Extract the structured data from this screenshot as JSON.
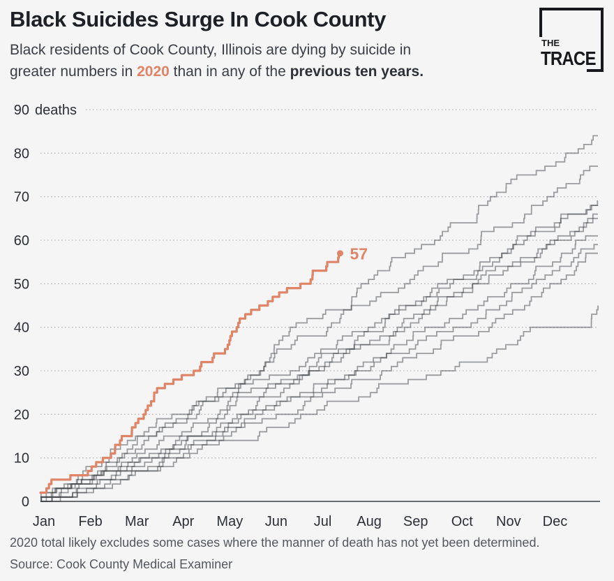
{
  "header": {
    "title": "Black Suicides Surge In Cook County",
    "subtitle_line1": "Black residents of Cook County, Illinois are dying by suicide in",
    "subtitle_line2_pre": "greater numbers in ",
    "subtitle_year": "2020",
    "subtitle_mid": " than in any of the ",
    "subtitle_bold": "previous ten years."
  },
  "logo": {
    "line1": "THE",
    "line2": "TRACE"
  },
  "footer": {
    "note": "2020 total likely excludes some cases where the manner of death has not yet been determined.",
    "source": "Source: Cook County Medical Examiner"
  },
  "colors": {
    "background": "#f5f5f6",
    "accent_orange": "#e08467",
    "prior_line": "#3f4347",
    "grid": "#b9babd",
    "axis_line": "#3c4043",
    "axis_text": "#2c3036"
  },
  "chart_data": {
    "type": "line",
    "title": "Black Suicides Surge In Cook County",
    "subtitle": "Cumulative suicide deaths of Black residents by month, 2020 vs previous ten years",
    "xlabel": "",
    "ylabel": "deaths",
    "x_categories": [
      "Jan",
      "Feb",
      "Mar",
      "Apr",
      "May",
      "Jun",
      "Jul",
      "Aug",
      "Sep",
      "Oct",
      "Nov",
      "Dec"
    ],
    "y_axis": {
      "range": [
        0,
        90
      ],
      "ticks": [
        0,
        10,
        20,
        30,
        40,
        50,
        60,
        70,
        80,
        90
      ],
      "top_tick_suffix": "deaths",
      "grid": "dotted"
    },
    "legend": "none",
    "highlight_series": {
      "name": "2020",
      "end_label": "57",
      "end_value": 57,
      "month_x": [
        0,
        1,
        2,
        3,
        4,
        5,
        6,
        6.45
      ],
      "cumulative": [
        2,
        6,
        17,
        28,
        35,
        47,
        53,
        57
      ]
    },
    "prior_series": [
      {
        "name": "prior-year-1",
        "end_value": 84,
        "cumulative": [
          0,
          5,
          11,
          18,
          26,
          34,
          42,
          50,
          57,
          64,
          71,
          77,
          84
        ]
      },
      {
        "name": "prior-year-2",
        "end_value": 77,
        "cumulative": [
          1,
          6,
          13,
          20,
          26,
          32,
          38,
          45,
          51,
          57,
          63,
          70,
          77
        ]
      },
      {
        "name": "prior-year-3",
        "end_value": 69,
        "cumulative": [
          0,
          4,
          9,
          15,
          21,
          27,
          33,
          39,
          45,
          51,
          57,
          63,
          69
        ]
      },
      {
        "name": "prior-year-4",
        "end_value": 68,
        "cumulative": [
          1,
          8,
          14,
          19,
          24,
          29,
          34,
          39,
          45,
          51,
          57,
          62,
          68
        ]
      },
      {
        "name": "prior-year-5",
        "end_value": 66,
        "cumulative": [
          0,
          3,
          7,
          12,
          18,
          24,
          30,
          36,
          42,
          48,
          54,
          60,
          66
        ]
      },
      {
        "name": "prior-year-6",
        "end_value": 65,
        "cumulative": [
          0,
          5,
          10,
          15,
          20,
          26,
          31,
          36,
          41,
          47,
          53,
          59,
          65
        ]
      },
      {
        "name": "prior-year-7",
        "end_value": 61,
        "cumulative": [
          0,
          4,
          8,
          13,
          17,
          22,
          27,
          32,
          37,
          42,
          48,
          54,
          61
        ]
      },
      {
        "name": "prior-year-8",
        "end_value": 59,
        "cumulative": [
          1,
          3,
          8,
          12,
          16,
          21,
          25,
          30,
          35,
          40,
          45,
          52,
          59
        ]
      },
      {
        "name": "prior-year-9",
        "end_value": 57,
        "cumulative": [
          0,
          2,
          6,
          10,
          15,
          19,
          24,
          28,
          33,
          38,
          43,
          50,
          57
        ]
      },
      {
        "name": "prior-year-10",
        "end_value": 45,
        "cumulative": [
          0,
          4,
          7,
          10,
          14,
          17,
          21,
          24,
          28,
          31,
          35,
          40,
          45
        ]
      }
    ]
  }
}
